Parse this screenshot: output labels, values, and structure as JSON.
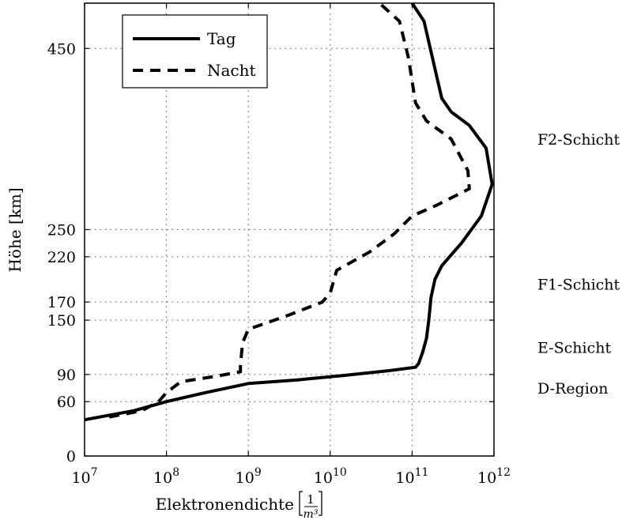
{
  "chart_data": {
    "type": "line",
    "xlabel": "Elektronendichte",
    "xlabel_unit": "[1/m³]",
    "ylabel": "Höhe [km]",
    "xscale": "log",
    "xlim": [
      10000000,
      1000000000000
    ],
    "ylim": [
      0,
      500
    ],
    "grid": true,
    "legend_position": "top-left",
    "x_ticks": [
      {
        "value": 10000000,
        "base": "10",
        "exp": "7"
      },
      {
        "value": 100000000,
        "base": "10",
        "exp": "8"
      },
      {
        "value": 1000000000,
        "base": "10",
        "exp": "9"
      },
      {
        "value": 10000000000,
        "base": "10",
        "exp": "10"
      },
      {
        "value": 100000000000,
        "base": "10",
        "exp": "11"
      },
      {
        "value": 1000000000000,
        "base": "10",
        "exp": "12"
      }
    ],
    "y_ticks": [
      0,
      60,
      90,
      150,
      170,
      220,
      250,
      450
    ],
    "regions": [
      {
        "label": "F2-Schicht",
        "altitude": 350
      },
      {
        "label": "F1-Schicht",
        "altitude": 190
      },
      {
        "label": "E-Schicht",
        "altitude": 120
      },
      {
        "label": "D-Region",
        "altitude": 75
      }
    ],
    "series": [
      {
        "name": "Tag",
        "style": "solid",
        "color": "#000000",
        "points": [
          [
            10000000,
            40
          ],
          [
            40000000,
            50
          ],
          [
            100000000,
            60
          ],
          [
            300000000,
            70
          ],
          [
            1000000000,
            80
          ],
          [
            4000000000,
            84
          ],
          [
            15000000000,
            89
          ],
          [
            50000000000,
            94
          ],
          [
            110000000000,
            98
          ],
          [
            120000000000,
            102
          ],
          [
            135000000000,
            115
          ],
          [
            150000000000,
            130
          ],
          [
            160000000000,
            150
          ],
          [
            170000000000,
            175
          ],
          [
            190000000000,
            195
          ],
          [
            230000000000,
            210
          ],
          [
            400000000000,
            235
          ],
          [
            700000000000,
            265
          ],
          [
            950000000000,
            300
          ],
          [
            800000000000,
            340
          ],
          [
            500000000000,
            365
          ],
          [
            300000000000,
            380
          ],
          [
            230000000000,
            395
          ],
          [
            140000000000,
            480
          ],
          [
            100000000000,
            500
          ]
        ]
      },
      {
        "name": "Nacht",
        "style": "dashed",
        "color": "#000000",
        "points": [
          [
            20000000,
            43
          ],
          [
            50000000,
            50
          ],
          [
            80000000,
            60
          ],
          [
            100000000,
            70
          ],
          [
            150000000,
            82
          ],
          [
            400000000,
            88
          ],
          [
            800000000,
            93
          ],
          [
            800000000,
            100
          ],
          [
            850000000,
            125
          ],
          [
            1000000000,
            140
          ],
          [
            3000000000,
            155
          ],
          [
            8000000000,
            170
          ],
          [
            10000000000,
            180
          ],
          [
            12000000000,
            205
          ],
          [
            30000000000,
            225
          ],
          [
            60000000000,
            245
          ],
          [
            100000000000,
            265
          ],
          [
            200000000000,
            277
          ],
          [
            500000000000,
            295
          ],
          [
            480000000000,
            315
          ],
          [
            300000000000,
            350
          ],
          [
            150000000000,
            370
          ],
          [
            110000000000,
            390
          ],
          [
            90000000000,
            440
          ],
          [
            70000000000,
            480
          ],
          [
            40000000000,
            500
          ]
        ]
      }
    ]
  }
}
